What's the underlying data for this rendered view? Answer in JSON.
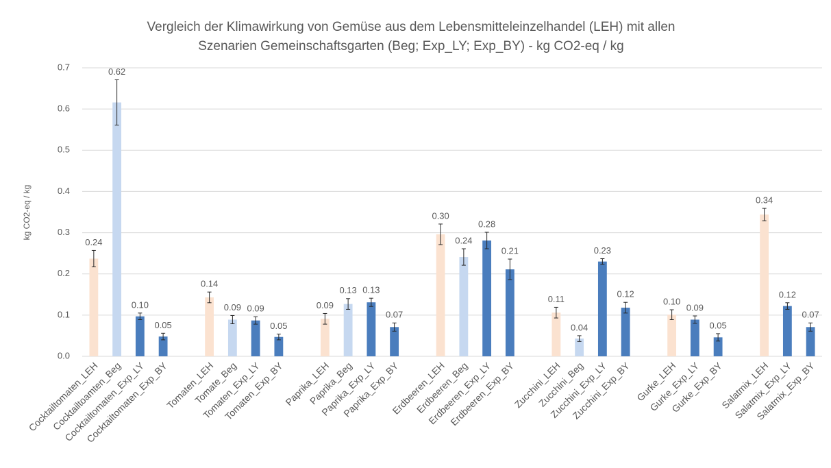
{
  "chart_data": {
    "type": "bar",
    "title": [
      "Vergleich der Klimawirkung von Gemüse aus dem Lebensmitteleinzelhandel (LEH) mit allen",
      "Szenarien Gemeinschaftsgarten (Beg; Exp_LY; Exp_BY) - kg CO2-eq / kg"
    ],
    "y_label": "kg CO2-eq / kg",
    "categories": [
      "Cocktailtomaten_LEH",
      "Cocktailtoamten_Beg",
      "Cocktailtomaten_Exp_LY",
      "Cocktailtomaten_Exp_BY",
      null,
      "Tomaten_LEH",
      "Tomate_Beg",
      "Tomaten_Exp_LY",
      "Tomaten_Exp_BY",
      null,
      "Paprika_LEH",
      "Paprika_Beg",
      "Paprika_Exp_LY",
      "Paprika_Exp_BY",
      null,
      "Erdbeeren_LEH",
      "Erdbeeren_Beg",
      "Erdbeeren_Exp_LY",
      "Erdbeeren_Exp_BY",
      null,
      "Zucchini_LEH",
      "Zucchini_Beg",
      "Zucchini_Exp_LY",
      "Zucchini_Exp_BY",
      null,
      "Gurke_LEH",
      "Gurke_Exp_LY",
      "Gurke_Exp_BY",
      null,
      "Salatmix_LEH",
      "Salatmix_Exp_LY",
      "Salatmix_Exp_BY"
    ],
    "values": [
      0.237,
      0.616,
      0.097,
      0.048,
      null,
      0.143,
      0.089,
      0.087,
      0.047,
      null,
      0.091,
      0.127,
      0.131,
      0.071,
      null,
      0.296,
      0.241,
      0.281,
      0.211,
      null,
      0.106,
      0.043,
      0.23,
      0.118,
      null,
      0.101,
      0.089,
      0.046,
      null,
      0.344,
      0.122,
      0.071
    ],
    "value_labels": [
      "0.24",
      "0.62",
      "0.10",
      "0.05",
      null,
      "0.14",
      "0.09",
      "0.09",
      "0.05",
      null,
      "0.09",
      "0.13",
      "0.13",
      "0.07",
      null,
      "0.30",
      "0.24",
      "0.28",
      "0.21",
      null,
      "0.11",
      "0.04",
      "0.23",
      "0.12",
      null,
      "0.10",
      "0.09",
      "0.05",
      null,
      "0.34",
      "0.12",
      "0.07"
    ],
    "errors": [
      0.02,
      0.055,
      0.008,
      0.008,
      null,
      0.013,
      0.01,
      0.009,
      0.007,
      null,
      0.013,
      0.013,
      0.01,
      0.01,
      null,
      0.025,
      0.02,
      0.02,
      0.025,
      null,
      0.013,
      0.007,
      0.007,
      0.013,
      null,
      0.012,
      0.009,
      0.009,
      null,
      0.015,
      0.008,
      0.01
    ],
    "colors": [
      "#fbe2d0",
      "#c6d8f0",
      "#4a7dbd",
      "#4a7dbd",
      null,
      "#fbe2d0",
      "#c6d8f0",
      "#4a7dbd",
      "#4a7dbd",
      null,
      "#fbe2d0",
      "#c6d8f0",
      "#4a7dbd",
      "#4a7dbd",
      null,
      "#fbe2d0",
      "#c6d8f0",
      "#4a7dbd",
      "#4a7dbd",
      null,
      "#fbe2d0",
      "#c6d8f0",
      "#4a7dbd",
      "#4a7dbd",
      null,
      "#fbe2d0",
      "#4a7dbd",
      "#4a7dbd",
      null,
      "#fbe2d0",
      "#4a7dbd",
      "#4a7dbd"
    ],
    "ylim": [
      0,
      0.7
    ],
    "yticks": [
      {
        "value": 0,
        "label": "0.0"
      },
      0.1,
      0.2,
      0.3,
      0.4,
      0.5,
      0.6,
      0.7
    ],
    "grid": true
  }
}
